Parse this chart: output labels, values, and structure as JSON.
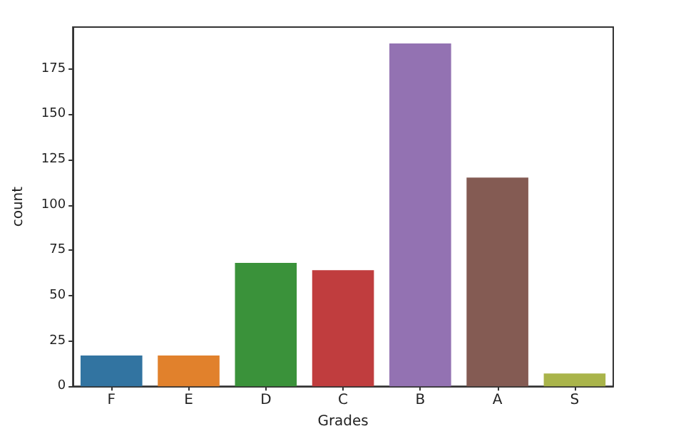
{
  "chart_data": {
    "type": "bar",
    "xlabel": "Grades",
    "ylabel": "count",
    "categories": [
      "F",
      "E",
      "D",
      "C",
      "B",
      "A",
      "S"
    ],
    "values": [
      17,
      17,
      68,
      64,
      189,
      115,
      7
    ],
    "colors": [
      "#3274a1",
      "#e1812c",
      "#3a923a",
      "#c03d3e",
      "#9372b2",
      "#845b53",
      "#a9b44a"
    ],
    "ylim": [
      0,
      198
    ],
    "yticks": [
      0,
      25,
      50,
      75,
      100,
      125,
      150,
      175
    ]
  }
}
